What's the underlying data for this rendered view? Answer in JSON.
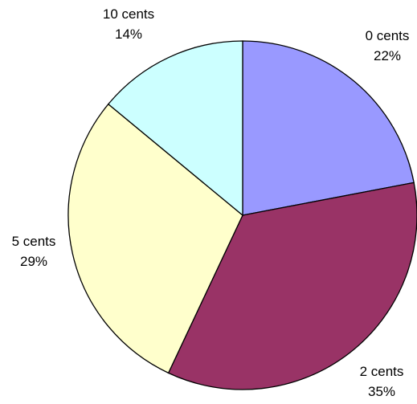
{
  "chart_data": {
    "type": "pie",
    "title": "",
    "slices": [
      {
        "category": "0 cents",
        "value": 22,
        "percent_label": "22%",
        "color": "#9999FF"
      },
      {
        "category": "2 cents",
        "value": 35,
        "percent_label": "35%",
        "color": "#993366"
      },
      {
        "category": "5 cents",
        "value": 29,
        "percent_label": "29%",
        "color": "#FFFFCC"
      },
      {
        "category": "10 cents",
        "value": 14,
        "percent_label": "14%",
        "color": "#CCFFFF"
      }
    ],
    "start_angle_deg": 0,
    "direction": "clockwise",
    "legend": "none",
    "data_labels": "outside"
  }
}
